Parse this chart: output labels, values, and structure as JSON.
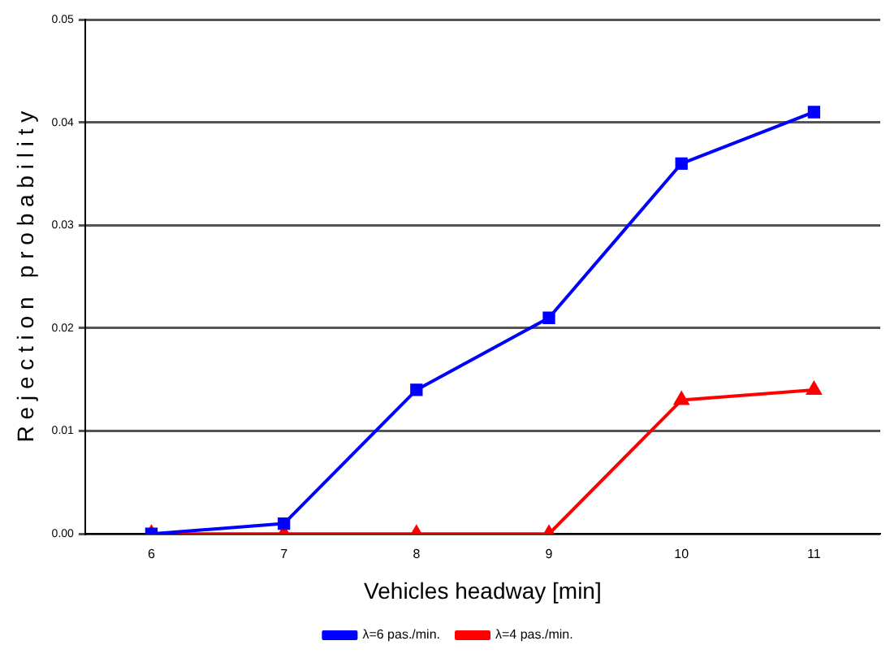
{
  "chart_data": {
    "type": "line",
    "xlabel": "Vehicles headway [min]",
    "ylabel": "R e j e c t i o n   p r o b a b i l i t y",
    "categories": [
      "6",
      "7",
      "8",
      "9",
      "10",
      "11"
    ],
    "series": [
      {
        "name": "λ=6 pas./min.",
        "color": "#0000ff",
        "marker": "square",
        "values": [
          0,
          0.001,
          0.014,
          0.021,
          0.036,
          0.041
        ]
      },
      {
        "name": "λ=4 pas./min.",
        "color": "#ff0000",
        "marker": "triangle",
        "values": [
          0,
          0,
          0,
          0,
          0.013,
          0.014
        ]
      }
    ],
    "ylim": [
      0,
      0.05
    ],
    "yticks": [
      {
        "value": 0,
        "label": "0.00"
      },
      {
        "value": 0.01,
        "label": "0.01"
      },
      {
        "value": 0.02,
        "label": "0.02"
      },
      {
        "value": 0.03,
        "label": "0.03"
      },
      {
        "value": 0.04,
        "label": "0.04"
      },
      {
        "value": 0.05,
        "label": "0.05"
      }
    ],
    "grid": "y",
    "legend": "bottom",
    "line_style": "solid"
  }
}
